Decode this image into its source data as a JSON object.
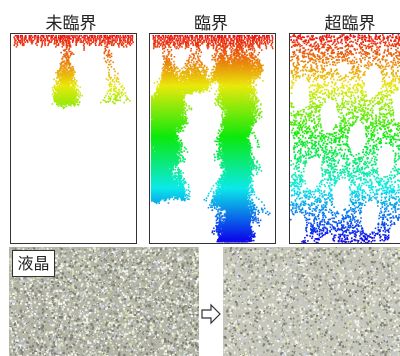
{
  "labels": {
    "subcritical": "未臨界",
    "critical": "臨界",
    "supercritical": "超臨界"
  },
  "photo_tag": "液晶",
  "icons": {
    "arrow": "right-arrow-icon"
  },
  "colors": {
    "panel_border": "#333333",
    "gradient_top": "#d81e1e",
    "gradient_bottom": "#2a1ec8",
    "photo_base_left": "#b5b5a8",
    "photo_base_right": "#c6c6bb"
  }
}
